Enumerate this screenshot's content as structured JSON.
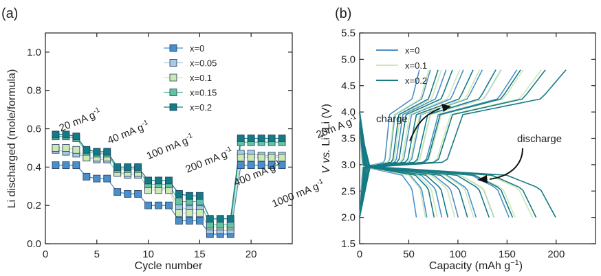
{
  "figure": {
    "panels": [
      {
        "letter": "(a)"
      },
      {
        "letter": "(b)"
      }
    ]
  },
  "chart_data": [
    {
      "type": "line",
      "panel": "(a)",
      "xlabel": "Cycle number",
      "ylabel": "Li discharged (mole/formula)",
      "xlim": [
        0,
        24
      ],
      "ylim": [
        0.0,
        1.1
      ],
      "xticks": [
        0,
        5,
        10,
        15,
        20
      ],
      "yticks": [
        0.0,
        0.2,
        0.4,
        0.6,
        0.8,
        1.0
      ],
      "ytick_labels": [
        "0.0",
        "0.2",
        "0.4",
        "0.6",
        "0.8",
        "1.0"
      ],
      "grid": false,
      "legend_position": "top-right",
      "marker": "square",
      "x": [
        1,
        2,
        3,
        4,
        5,
        6,
        7,
        8,
        9,
        10,
        11,
        12,
        13,
        14,
        15,
        16,
        17,
        18,
        19,
        20,
        21,
        22,
        23
      ],
      "series": [
        {
          "name": "x=0",
          "color": "#4a8fc9",
          "values": [
            0.41,
            0.41,
            0.41,
            0.35,
            0.34,
            0.34,
            0.27,
            0.26,
            0.26,
            0.2,
            0.2,
            0.2,
            0.12,
            0.12,
            0.12,
            0.05,
            0.05,
            0.05,
            0.41,
            0.41,
            0.41,
            0.41,
            0.41
          ]
        },
        {
          "name": "x=0.05",
          "color": "#a7c9e3",
          "values": [
            0.49,
            0.48,
            0.47,
            0.45,
            0.44,
            0.44,
            0.37,
            0.36,
            0.36,
            0.3,
            0.29,
            0.29,
            0.19,
            0.18,
            0.18,
            0.07,
            0.07,
            0.07,
            0.47,
            0.47,
            0.46,
            0.46,
            0.46
          ]
        },
        {
          "name": "x=0.1",
          "color": "#cde8b4",
          "values": [
            0.5,
            0.5,
            0.49,
            0.45,
            0.45,
            0.45,
            0.37,
            0.37,
            0.37,
            0.28,
            0.28,
            0.28,
            0.16,
            0.16,
            0.16,
            0.09,
            0.09,
            0.09,
            0.45,
            0.45,
            0.45,
            0.45,
            0.45
          ]
        },
        {
          "name": "x=0.15",
          "color": "#63c2a0",
          "values": [
            0.56,
            0.56,
            0.55,
            0.48,
            0.47,
            0.47,
            0.39,
            0.39,
            0.39,
            0.31,
            0.31,
            0.31,
            0.22,
            0.22,
            0.22,
            0.1,
            0.1,
            0.1,
            0.53,
            0.53,
            0.53,
            0.53,
            0.53
          ]
        },
        {
          "name": "x=0.2",
          "color": "#147a85",
          "values": [
            0.57,
            0.57,
            0.56,
            0.49,
            0.48,
            0.48,
            0.4,
            0.4,
            0.4,
            0.33,
            0.33,
            0.33,
            0.26,
            0.25,
            0.25,
            0.13,
            0.13,
            0.13,
            0.55,
            0.55,
            0.55,
            0.55,
            0.55
          ]
        }
      ],
      "annotations": [
        {
          "text": "20 mA g",
          "sup": "-1",
          "x": 1.5,
          "y": 0.585
        },
        {
          "text": "40 mA g",
          "sup": "-1",
          "x": 6.2,
          "y": 0.52
        },
        {
          "text": "100 mA g",
          "sup": "-1",
          "x": 10.0,
          "y": 0.44
        },
        {
          "text": "200 mA g",
          "sup": "-1",
          "x": 13.8,
          "y": 0.37
        },
        {
          "text": "400 mA g",
          "sup": "-1",
          "x": 18.5,
          "y": 0.3
        },
        {
          "text": "1000 mA g",
          "sup": "-1",
          "x": 22.2,
          "y": 0.19
        },
        {
          "text": "20m A g",
          "sup": "-1",
          "x": 26.5,
          "y": 0.55
        }
      ]
    },
    {
      "type": "line",
      "panel": "(b)",
      "xlabel_prefix": "Capacity (mAh g",
      "xlabel_sup": "−1",
      "xlabel_suffix": ")",
      "ylabel_italic_1": "V",
      "ylabel_italic_2": "vs.",
      "ylabel_main": "Li",
      "ylabel_sup": "+",
      "ylabel_suffix": "/Li (V)",
      "xlim": [
        0,
        240
      ],
      "ylim": [
        1.5,
        5.5
      ],
      "xticks": [
        0,
        50,
        100,
        150,
        200
      ],
      "yticks": [
        1.5,
        2.0,
        2.5,
        3.0,
        3.5,
        4.0,
        4.5,
        5.0,
        5.5
      ],
      "ytick_labels": [
        "1.5",
        "2.0",
        "2.5",
        "3.0",
        "3.5",
        "4.0",
        "4.5",
        "5.0",
        "5.5"
      ],
      "grid": false,
      "legend_position": "top-left",
      "series": [
        {
          "name": "x=0",
          "color": "#4a8fc9",
          "capacity_max": 160
        },
        {
          "name": "x=0.1",
          "color": "#cde8b4",
          "capacity_max": 185
        },
        {
          "name": "x=0.2",
          "color": "#147a85",
          "capacity_max": 210
        }
      ],
      "annotations": [
        {
          "text": "charge"
        },
        {
          "text": "discharge"
        }
      ]
    }
  ]
}
